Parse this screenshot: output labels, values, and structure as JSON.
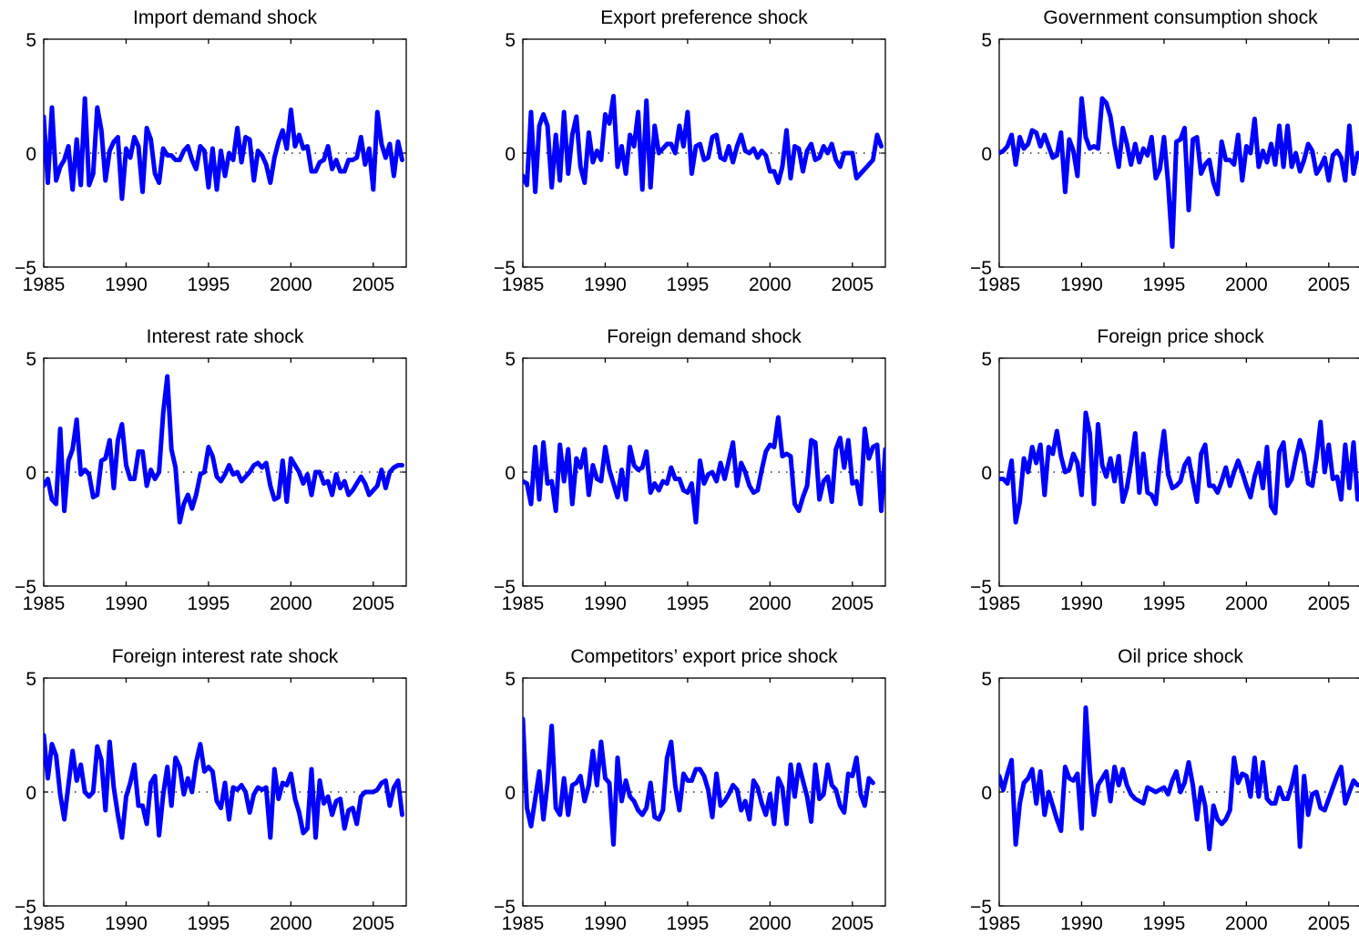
{
  "figure": {
    "line_color": "#0000ff"
  },
  "chart_data": [
    {
      "type": "line",
      "title": "Import demand shock",
      "xlim": [
        1985,
        2007
      ],
      "ylim": [
        -5,
        5
      ],
      "xticks": [
        1985,
        1990,
        1995,
        2000,
        2005
      ],
      "yticks": [
        -5,
        0,
        5
      ],
      "x_start": 1985,
      "x_step": 0.25,
      "grid": false,
      "values": [
        1.6,
        -1.3,
        2.0,
        -1.2,
        -0.6,
        -0.3,
        0.3,
        -1.6,
        0.6,
        -1.4,
        2.4,
        -1.4,
        -0.9,
        2.0,
        1.0,
        -1.2,
        0.1,
        0.5,
        0.7,
        -2.0,
        0.2,
        -0.2,
        0.7,
        0.3,
        -1.7,
        1.1,
        0.6,
        -0.9,
        -1.3,
        0.2,
        -0.1,
        -0.1,
        -0.3,
        -0.3,
        0.1,
        0.3,
        -0.3,
        -0.7,
        0.3,
        0.1,
        -1.5,
        0.2,
        -1.6,
        0.1,
        -1.0,
        0.0,
        -0.3,
        1.1,
        -0.4,
        0.7,
        0.6,
        -1.2,
        0.1,
        -0.1,
        -0.5,
        -1.3,
        -0.2,
        0.5,
        1.0,
        0.2,
        1.9,
        0.3,
        0.8,
        0.2,
        0.3,
        -0.8,
        -0.8,
        -0.4,
        -0.3,
        0.3,
        -0.7,
        -0.3,
        -0.8,
        -0.8,
        -0.3,
        -0.3,
        -0.2,
        0.7,
        -0.5,
        0.2,
        -1.6,
        1.8,
        0.4,
        -0.2,
        0.4,
        -1.0,
        0.5,
        -0.3
      ]
    },
    {
      "type": "line",
      "title": "Export preference shock",
      "xlim": [
        1985,
        2007
      ],
      "ylim": [
        -5,
        5
      ],
      "xticks": [
        1985,
        1990,
        1995,
        2000,
        2005
      ],
      "yticks": [
        -5,
        0,
        5
      ],
      "x_start": 1985,
      "x_step": 0.25,
      "grid": false,
      "values": [
        -1.0,
        -1.4,
        1.8,
        -1.7,
        1.2,
        1.7,
        1.2,
        -1.5,
        0.8,
        -1.2,
        1.8,
        -0.9,
        0.8,
        1.6,
        -0.6,
        -1.3,
        0.9,
        -0.4,
        0.1,
        -0.3,
        1.7,
        1.3,
        2.5,
        -0.6,
        0.3,
        -0.9,
        0.8,
        0.3,
        1.8,
        -1.6,
        2.3,
        -1.5,
        1.2,
        0.0,
        0.2,
        0.4,
        0.4,
        0.0,
        1.2,
        0.3,
        1.8,
        -0.9,
        0.3,
        0.4,
        -0.3,
        -0.2,
        0.7,
        0.8,
        -0.2,
        -0.3,
        0.3,
        -0.4,
        0.3,
        0.8,
        0.1,
        0.0,
        0.2,
        -0.2,
        0.1,
        -0.1,
        -0.8,
        -0.8,
        -1.3,
        -0.6,
        1.0,
        -1.1,
        0.3,
        0.2,
        -0.8,
        0.1,
        0.4,
        -0.3,
        -0.2,
        0.3,
        0.0,
        0.4,
        -0.3,
        -0.6,
        0.0,
        0.0,
        0.0,
        -1.1,
        -0.9,
        -0.7,
        -0.5,
        -0.3,
        0.8,
        0.3
      ]
    },
    {
      "type": "line",
      "title": "Government consumption shock",
      "xlim": [
        1985,
        2007
      ],
      "ylim": [
        -5,
        5
      ],
      "xticks": [
        1985,
        1990,
        1995,
        2000,
        2005
      ],
      "yticks": [
        -5,
        0,
        5
      ],
      "x_start": 1985,
      "x_step": 0.25,
      "grid": false,
      "values": [
        0.0,
        0.1,
        0.3,
        0.8,
        -0.5,
        0.7,
        0.2,
        0.4,
        1.0,
        0.9,
        0.3,
        0.8,
        0.3,
        -0.2,
        -0.1,
        0.9,
        -1.7,
        0.6,
        0.1,
        -1.0,
        2.4,
        0.7,
        0.2,
        0.3,
        0.2,
        2.4,
        2.2,
        1.6,
        0.4,
        -0.6,
        1.1,
        0.4,
        -0.5,
        0.4,
        -0.4,
        0.2,
        -0.1,
        0.7,
        -1.1,
        -0.7,
        0.7,
        -1.3,
        -4.1,
        0.5,
        0.6,
        1.1,
        -2.5,
        0.6,
        0.7,
        -0.9,
        -0.5,
        -0.3,
        -1.3,
        -1.8,
        0.5,
        -0.3,
        -0.3,
        -0.5,
        0.8,
        -1.2,
        0.3,
        0.0,
        1.5,
        -0.6,
        0.1,
        -0.4,
        0.4,
        -0.5,
        1.2,
        -0.6,
        1.2,
        -0.6,
        0.0,
        -0.8,
        -0.3,
        0.4,
        0.1,
        -0.9,
        -0.6,
        -0.2,
        -1.2,
        -0.1,
        0.1,
        -0.2,
        -1.2,
        1.2,
        -0.9,
        0.0
      ]
    },
    {
      "type": "line",
      "title": "Interest rate shock",
      "xlim": [
        1985,
        2007
      ],
      "ylim": [
        -5,
        5
      ],
      "xticks": [
        1985,
        1990,
        1995,
        2000,
        2005
      ],
      "yticks": [
        -5,
        0,
        5
      ],
      "x_start": 1985,
      "x_step": 0.25,
      "grid": false,
      "values": [
        -0.6,
        -0.3,
        -1.2,
        -1.4,
        1.9,
        -1.7,
        0.5,
        1.0,
        2.3,
        -0.1,
        0.1,
        -0.1,
        -1.1,
        -1.0,
        0.5,
        0.6,
        1.4,
        -0.7,
        1.4,
        2.1,
        0.3,
        -0.3,
        -0.3,
        0.9,
        0.9,
        -0.6,
        0.1,
        -0.3,
        0.0,
        2.6,
        4.2,
        1.0,
        0.2,
        -2.2,
        -1.4,
        -1.0,
        -1.6,
        -1.0,
        -0.1,
        0.0,
        1.1,
        0.7,
        -0.2,
        -0.4,
        -0.1,
        0.3,
        -0.1,
        0.0,
        -0.4,
        -0.2,
        0.0,
        0.3,
        0.4,
        0.2,
        0.4,
        -0.6,
        -1.2,
        -1.1,
        0.5,
        -1.3,
        0.6,
        0.3,
        0.0,
        -0.5,
        -0.1,
        -1.0,
        0.0,
        0.0,
        -0.5,
        -0.4,
        -1.0,
        -0.1,
        -0.7,
        -0.4,
        -1.0,
        -0.8,
        -0.5,
        -0.2,
        -0.5,
        -1.0,
        -0.8,
        -0.6,
        0.1,
        -0.7,
        0.0,
        0.2,
        0.3,
        0.3
      ]
    },
    {
      "type": "line",
      "title": "Foreign demand shock",
      "xlim": [
        1985,
        2007
      ],
      "ylim": [
        -5,
        5
      ],
      "xticks": [
        1985,
        1990,
        1995,
        2000,
        2005
      ],
      "yticks": [
        -5,
        0,
        5
      ],
      "x_start": 1985,
      "x_step": 0.25,
      "grid": false,
      "values": [
        -0.4,
        -0.5,
        -1.4,
        1.1,
        -1.2,
        1.3,
        -0.5,
        -0.4,
        -1.7,
        1.2,
        -0.4,
        1.0,
        -1.4,
        0.6,
        0.2,
        1.0,
        -1.0,
        0.3,
        -0.3,
        -0.4,
        1.1,
        0.1,
        -0.5,
        -1.1,
        0.1,
        -1.2,
        1.1,
        0.3,
        0.1,
        0.2,
        0.9,
        -0.9,
        -0.5,
        -0.8,
        -0.4,
        -0.5,
        0.2,
        -0.3,
        -0.3,
        -0.8,
        -0.9,
        -0.5,
        -2.2,
        0.5,
        -0.5,
        -0.1,
        0.0,
        -0.4,
        0.4,
        -0.3,
        0.5,
        1.3,
        -0.6,
        0.4,
        0.0,
        -0.6,
        -0.9,
        -0.8,
        0.1,
        0.9,
        1.2,
        1.1,
        2.4,
        0.7,
        0.8,
        0.7,
        -1.4,
        -1.7,
        -1.1,
        -0.6,
        1.4,
        1.3,
        -1.2,
        -0.4,
        -0.2,
        -1.3,
        1.0,
        1.5,
        0.2,
        1.4,
        -0.5,
        -0.4,
        -1.4,
        1.9,
        0.6,
        1.1,
        1.2,
        -1.7,
        1.0
      ]
    },
    {
      "type": "line",
      "title": "Foreign price shock",
      "xlim": [
        1985,
        2007
      ],
      "ylim": [
        -5,
        5
      ],
      "xticks": [
        1985,
        1990,
        1995,
        2000,
        2005
      ],
      "yticks": [
        -5,
        0,
        5
      ],
      "x_start": 1985,
      "x_step": 0.25,
      "grid": false,
      "values": [
        -0.3,
        -0.3,
        -0.5,
        0.5,
        -2.2,
        -1.3,
        0.6,
        0.0,
        1.1,
        0.4,
        1.2,
        -1.0,
        1.1,
        0.8,
        1.8,
        0.7,
        0.0,
        0.1,
        0.8,
        0.4,
        -1.0,
        2.6,
        1.7,
        -1.4,
        2.1,
        0.3,
        -0.2,
        0.6,
        -0.4,
        0.7,
        -1.3,
        -0.7,
        0.4,
        1.7,
        -0.9,
        0.8,
        -0.9,
        -1.0,
        -1.4,
        0.5,
        1.8,
        -0.1,
        -0.7,
        -0.6,
        -0.4,
        0.3,
        0.6,
        -0.4,
        -1.3,
        0.8,
        1.2,
        -0.6,
        -0.6,
        -0.9,
        -0.4,
        0.2,
        -0.6,
        0.0,
        0.5,
        0.0,
        -0.6,
        -1.1,
        -0.2,
        0.4,
        -0.7,
        1.1,
        -1.5,
        -1.8,
        0.9,
        1.3,
        -0.6,
        -0.3,
        0.6,
        1.4,
        0.8,
        -0.5,
        -0.6,
        0.6,
        2.2,
        0.0,
        1.2,
        -0.3,
        -0.2,
        -1.2,
        1.2,
        -0.7,
        1.3,
        -1.2
      ]
    },
    {
      "type": "line",
      "title": "Foreign interest rate shock",
      "xlim": [
        1985,
        2007
      ],
      "ylim": [
        -5,
        5
      ],
      "xticks": [
        1985,
        1990,
        1995,
        2000,
        2005
      ],
      "yticks": [
        -5,
        0,
        5
      ],
      "x_start": 1985,
      "x_step": 0.25,
      "grid": false,
      "values": [
        2.5,
        0.6,
        2.1,
        1.6,
        -0.1,
        -1.2,
        0.3,
        1.8,
        0.5,
        1.2,
        0.0,
        -0.2,
        0.0,
        2.0,
        1.4,
        -0.8,
        2.2,
        0.2,
        -1.0,
        -2.0,
        -0.2,
        0.4,
        1.2,
        -0.6,
        -0.6,
        -1.4,
        0.4,
        0.7,
        -1.9,
        -0.1,
        1.1,
        -0.6,
        1.5,
        1.1,
        -0.1,
        0.6,
        0.0,
        1.3,
        2.1,
        0.9,
        1.1,
        0.9,
        -0.4,
        -0.7,
        0.4,
        -1.2,
        0.2,
        0.1,
        0.3,
        0.0,
        -0.9,
        -0.1,
        0.2,
        0.1,
        0.2,
        -2.0,
        1.0,
        -0.3,
        0.4,
        0.3,
        0.8,
        -0.3,
        -0.9,
        -1.8,
        -1.6,
        1.0,
        -2.0,
        0.5,
        -0.5,
        -0.2,
        -1.0,
        -0.4,
        -0.3,
        -1.6,
        -0.8,
        -0.7,
        -1.4,
        -0.2,
        0.0,
        0.0,
        0.0,
        0.1,
        0.4,
        0.5,
        -0.6,
        0.2,
        0.5,
        -1.0
      ]
    },
    {
      "type": "line",
      "title": "Competitors’ export price shock",
      "xlim": [
        1985,
        2007
      ],
      "ylim": [
        -5,
        5
      ],
      "xticks": [
        1985,
        1990,
        1995,
        2000,
        2005
      ],
      "yticks": [
        -5,
        0,
        5
      ],
      "x_start": 1985,
      "x_step": 0.25,
      "grid": false,
      "values": [
        3.2,
        -0.7,
        -1.5,
        -0.3,
        0.9,
        -1.2,
        0.4,
        2.9,
        -0.7,
        -1.0,
        0.6,
        -1.0,
        0.3,
        0.4,
        0.7,
        -0.4,
        0.3,
        1.8,
        0.3,
        2.2,
        0.6,
        0.4,
        -2.3,
        1.5,
        -0.4,
        0.5,
        -0.2,
        -0.4,
        -0.8,
        -1.0,
        -0.7,
        0.4,
        -1.1,
        -1.2,
        -0.8,
        1.5,
        2.2,
        0.3,
        -0.8,
        0.8,
        0.5,
        0.5,
        1.0,
        1.0,
        0.7,
        0.1,
        -1.1,
        0.8,
        -0.6,
        -0.4,
        -0.1,
        0.3,
        0.1,
        -0.8,
        -0.4,
        -1.2,
        0.5,
        0.2,
        -0.5,
        -1.0,
        -0.1,
        -1.4,
        0.6,
        0.2,
        -1.4,
        1.2,
        -0.2,
        1.2,
        0.5,
        -0.2,
        -1.3,
        1.2,
        -0.3,
        -0.1,
        1.2,
        0.3,
        0.1,
        -0.6,
        -0.9,
        0.8,
        0.7,
        1.5,
        -0.1,
        -0.6,
        0.6,
        0.4
      ]
    },
    {
      "type": "line",
      "title": "Oil price shock",
      "xlim": [
        1985,
        2007
      ],
      "ylim": [
        -5,
        5
      ],
      "xticks": [
        1985,
        1990,
        1995,
        2000,
        2005
      ],
      "yticks": [
        -5,
        0,
        5
      ],
      "x_start": 1985,
      "x_step": 0.25,
      "grid": false,
      "values": [
        0.7,
        0.1,
        0.8,
        1.4,
        -2.3,
        -0.5,
        0.4,
        0.6,
        1.0,
        -0.5,
        0.9,
        -1.0,
        0.0,
        -0.6,
        -1.2,
        -1.7,
        1.1,
        0.6,
        0.5,
        0.8,
        -1.6,
        3.7,
        0.9,
        -1.0,
        0.3,
        0.6,
        0.9,
        -0.4,
        1.1,
        0.3,
        1.0,
        0.3,
        -0.1,
        -0.3,
        -0.4,
        -0.5,
        0.2,
        0.1,
        0.0,
        0.1,
        0.2,
        -0.1,
        0.5,
        0.9,
        0.0,
        0.4,
        1.3,
        0.3,
        -1.2,
        0.2,
        -0.6,
        -2.5,
        -0.6,
        -1.2,
        -1.4,
        -1.2,
        -0.8,
        1.5,
        0.4,
        0.8,
        0.7,
        -0.2,
        1.5,
        -0.2,
        1.3,
        -0.3,
        -0.5,
        -0.5,
        0.2,
        -0.3,
        -0.3,
        0.3,
        1.1,
        -2.4,
        0.7,
        -1.0,
        -0.1,
        0.0,
        -0.7,
        -0.8,
        -0.3,
        0.2,
        0.7,
        1.1,
        -0.5,
        0.0,
        0.5,
        0.3
      ]
    }
  ]
}
